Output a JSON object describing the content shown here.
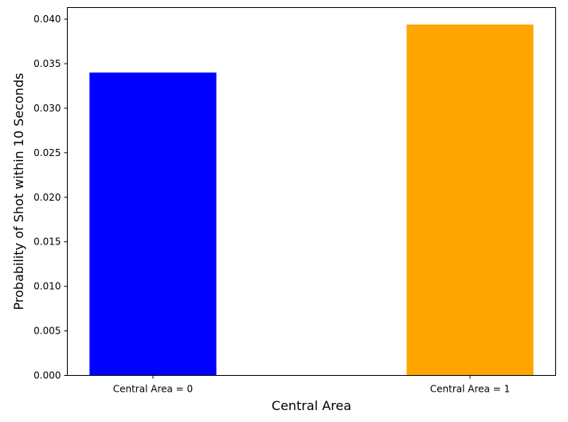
{
  "chart_data": {
    "type": "bar",
    "categories": [
      "Central Area = 0",
      "Central Area = 1"
    ],
    "values": [
      0.034,
      0.0394
    ],
    "colors": [
      "#0000ff",
      "#ffa500"
    ],
    "title": "",
    "xlabel": "Central Area",
    "ylabel": "Probability of Shot within 10 Seconds",
    "ylim": [
      0,
      0.0413
    ],
    "yticks": [
      0.0,
      0.005,
      0.01,
      0.015,
      0.02,
      0.025,
      0.03,
      0.035,
      0.04
    ],
    "ytick_labels": [
      "0.000",
      "0.005",
      "0.010",
      "0.015",
      "0.020",
      "0.025",
      "0.030",
      "0.035",
      "0.040"
    ],
    "grid": false,
    "legend": "none"
  }
}
